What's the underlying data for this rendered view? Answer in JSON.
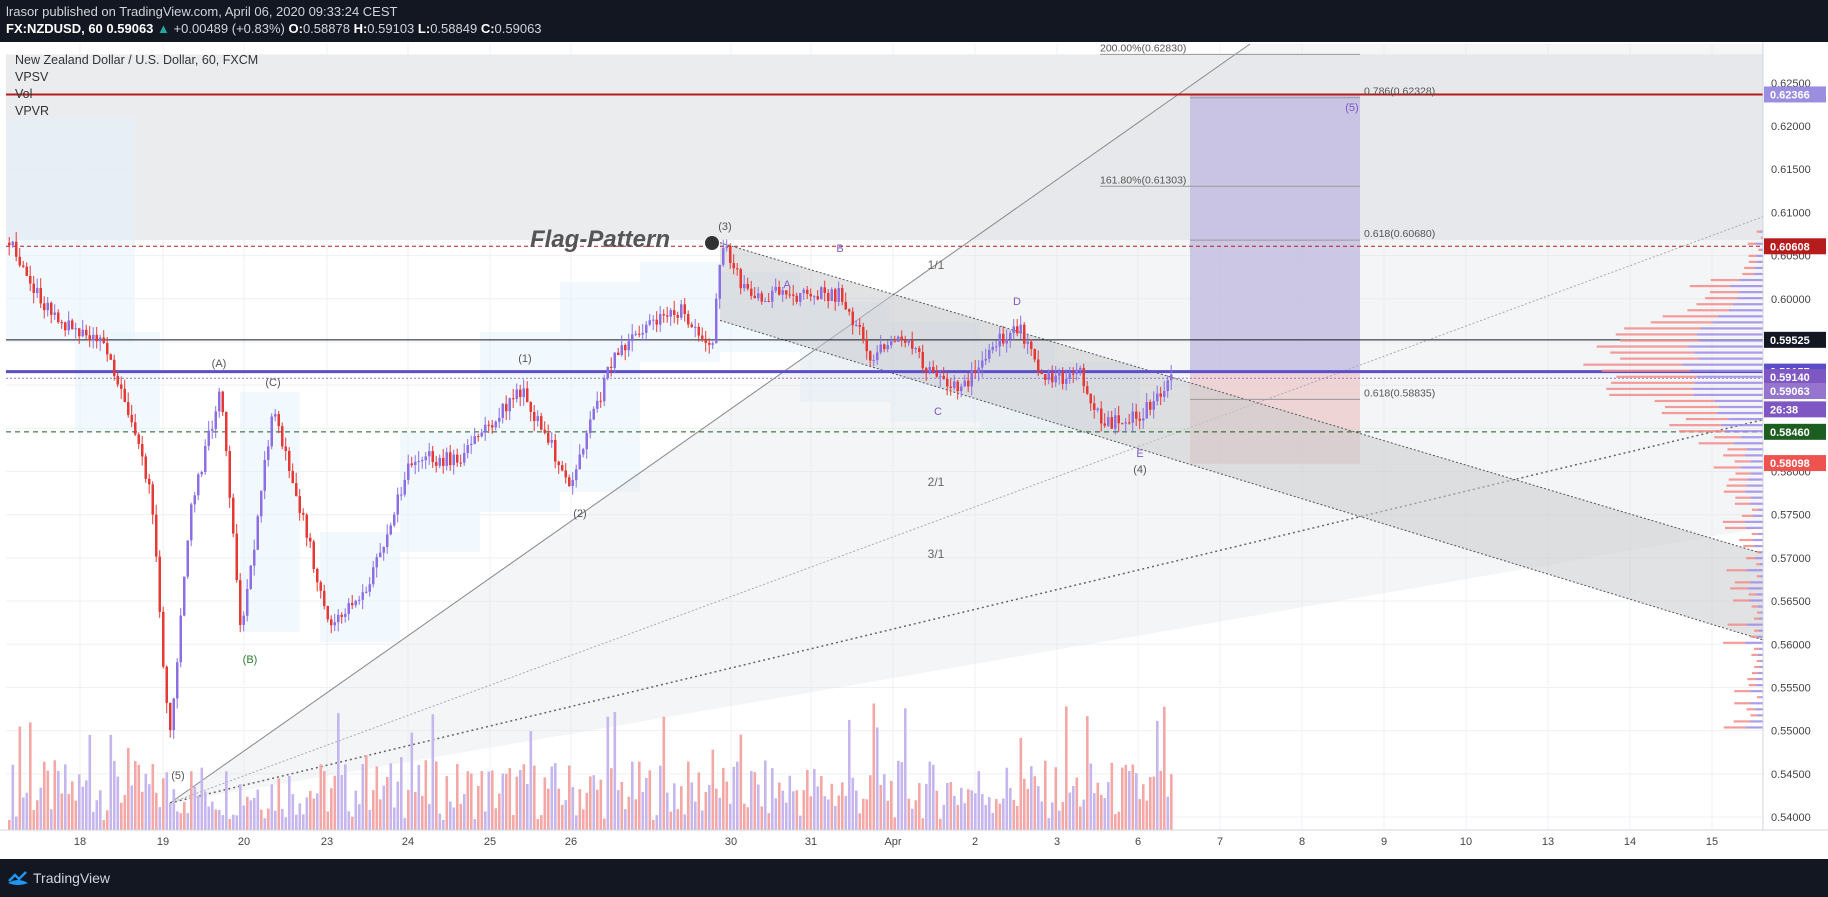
{
  "header": {
    "author": "lrasor",
    "published_text": "published on TradingView.com, April 06, 2020 09:33:24 CEST",
    "symbol": "FX:NZDUSD, 60",
    "last": "0.59063",
    "change": "+0.00489 (+0.83%)",
    "o_label": "O:",
    "o_value": "0.58878",
    "h_label": "H:",
    "h_value": "0.59103",
    "l_label": "L:",
    "l_value": "0.58849",
    "c_label": "C:",
    "c_value": "0.59063"
  },
  "legend": {
    "title": "New Zealand Dollar / U.S. Dollar, 60, FXCM",
    "indicators": [
      "VPSV",
      "Vol",
      "VPVR"
    ]
  },
  "footer": {
    "brand": "TradingView"
  },
  "colors": {
    "up": "#9176e0",
    "down": "#ef5350",
    "bg": "#ffffff",
    "shade": "#e6e7e9",
    "purple_line": "#5c4ec9",
    "price_axis_bg": "#ffffff"
  },
  "chart_data": {
    "type": "candlestick",
    "title": "Flag-Pattern",
    "y_ticks": [
      "0.62500",
      "0.62000",
      "0.61500",
      "0.61000",
      "0.60500",
      "0.60000",
      "0.59500",
      "0.59000",
      "0.58500",
      "0.58000",
      "0.57500",
      "0.57000",
      "0.56500",
      "0.56000",
      "0.55500",
      "0.55000",
      "0.54500",
      "0.54000"
    ],
    "y_tick_values": [
      0.625,
      0.62,
      0.615,
      0.61,
      0.605,
      0.6,
      0.595,
      0.59,
      0.585,
      0.58,
      0.575,
      0.57,
      0.565,
      0.56,
      0.555,
      0.55,
      0.545,
      0.54
    ],
    "x_ticks": [
      "18",
      "19",
      "20",
      "23",
      "24",
      "25",
      "26",
      "30",
      "31",
      "Apr",
      "2",
      "3",
      "6",
      "7",
      "8",
      "9",
      "10",
      "13",
      "14",
      "15"
    ],
    "ylim": [
      0.5385,
      0.6295
    ],
    "price_labels": [
      {
        "value": "0.62366",
        "color": "#9b8ee0"
      },
      {
        "value": "0.60608",
        "color": "#b71c1c"
      },
      {
        "value": "0.59525",
        "color": "#131722"
      },
      {
        "value": "0.59157",
        "color": "#5c4ec9"
      },
      {
        "value": "0.59140",
        "color": "#7e57c2"
      },
      {
        "value": "0.59063",
        "color": "#9575cd"
      },
      {
        "value": "26:38",
        "color": "#7e57c2"
      },
      {
        "value": "0.58460",
        "color": "#1b5e20"
      },
      {
        "value": "0.58098",
        "color": "#ef5350"
      }
    ],
    "fib_levels": [
      {
        "label": "200.00%(0.62830)",
        "value": 0.6283
      },
      {
        "label": "0.786(0.62328)",
        "value": 0.62328
      },
      {
        "label": "161.80%(0.61303)",
        "value": 0.61303
      },
      {
        "label": "0.618(0.60680)",
        "value": 0.6068
      },
      {
        "label": "0.618(0.58835)",
        "value": 0.58835
      }
    ],
    "wave_labels": [
      "(A)",
      "(B)",
      "(C)",
      "(5)",
      "(1)",
      "(2)",
      "(3)",
      "(4)",
      "(5)",
      "A",
      "B",
      "C",
      "D",
      "E"
    ],
    "gann_labels": [
      "1/1",
      "2/1",
      "3/1"
    ],
    "horizontal_levels": [
      0.62366,
      0.60608,
      0.59525,
      0.59157,
      0.5846
    ],
    "projection_box": {
      "top": 0.62366,
      "entry": 0.5915,
      "bottom": 0.5809
    }
  }
}
